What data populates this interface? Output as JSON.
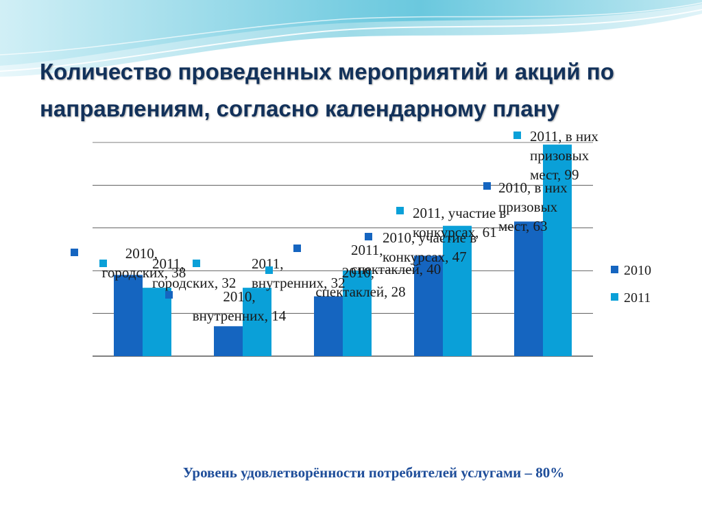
{
  "slide": {
    "title_lines": [
      "Количество проведенных мероприятий и акций по",
      "направлениям, согласно календарному плану"
    ],
    "footer": "Уровень удовлетворённости потребителей услугами – 80%"
  },
  "colors": {
    "series_2010": "#1565c0",
    "series_2011": "#0aa0d8",
    "title": "#12315a",
    "footer": "#1f4e9a",
    "gridline": "#000000",
    "wave_light": "#bfe6ef",
    "wave_mid": "#7fcfe0"
  },
  "chart_data": {
    "type": "bar",
    "ylim": [
      0,
      100
    ],
    "grid": true,
    "legend_position": "right",
    "categories": [
      "городских",
      "внутренних",
      "спектаклей",
      "участие в конкурсах",
      "в них призовых мест"
    ],
    "series": [
      {
        "name": "2010",
        "values": [
          38,
          14,
          28,
          47,
          63
        ]
      },
      {
        "name": "2011",
        "values": [
          32,
          32,
          40,
          61,
          99
        ]
      }
    ],
    "data_labels": {
      "2010": [
        [
          "2010,",
          "городских, 38"
        ],
        [
          "2010,",
          "внутренних, 14"
        ],
        [
          "2010,",
          "спектаклей, 28"
        ],
        [
          "2010, участие в",
          "конкурсах, 47"
        ],
        [
          "2010, в них",
          "призовых",
          "мест, 63"
        ]
      ],
      "2011": [
        [
          "2011,",
          "городских, 32"
        ],
        [
          "2011,",
          "внутренних, 32"
        ],
        [
          "2011,",
          "спектаклей, 40"
        ],
        [
          "2011, участие в",
          "конкурсах, 61"
        ],
        [
          "2011, в них",
          "призовых",
          "мест, 99"
        ]
      ]
    }
  }
}
